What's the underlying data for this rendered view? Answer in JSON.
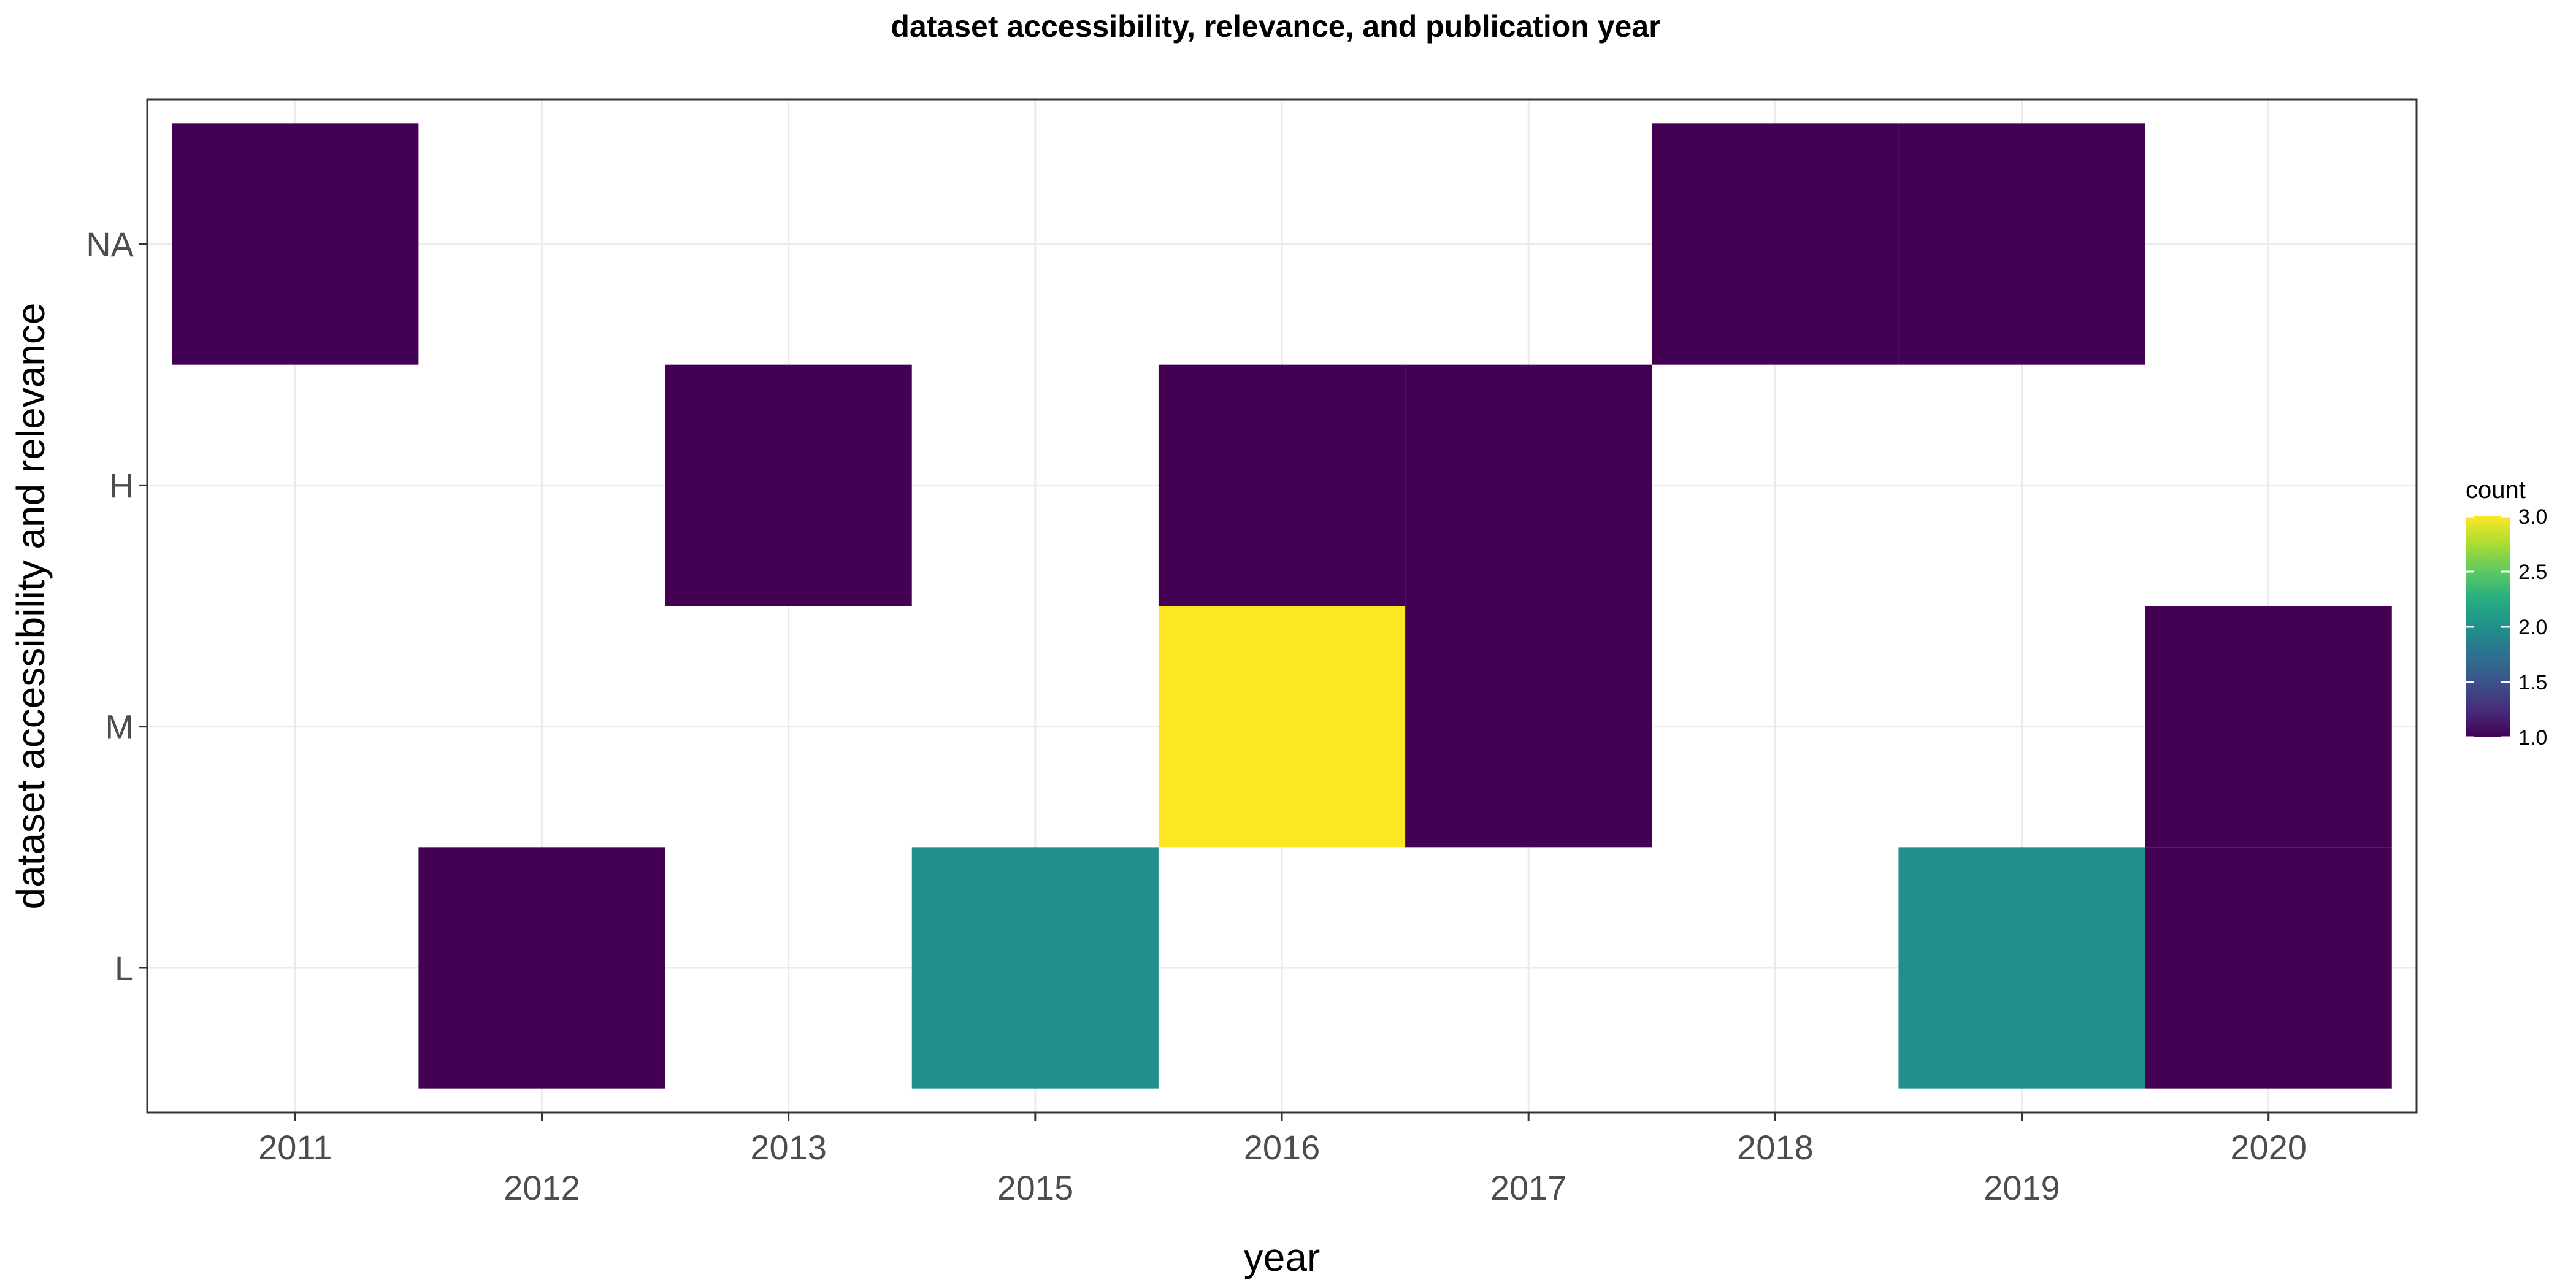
{
  "chart_data": {
    "type": "heatmap",
    "title": "dataset accessibility, relevance, and publication year",
    "xlabel": "year",
    "ylabel": "dataset accessibility and relevance",
    "x_categories": [
      "2011",
      "2012",
      "2013",
      "2015",
      "2016",
      "2017",
      "2018",
      "2019",
      "2020"
    ],
    "y_categories": [
      "L",
      "M",
      "H",
      "NA"
    ],
    "cells": [
      {
        "x": "2011",
        "y": "NA",
        "count": 1
      },
      {
        "x": "2018",
        "y": "NA",
        "count": 1
      },
      {
        "x": "2019",
        "y": "NA",
        "count": 1
      },
      {
        "x": "2013",
        "y": "H",
        "count": 1
      },
      {
        "x": "2016",
        "y": "H",
        "count": 1
      },
      {
        "x": "2017",
        "y": "H",
        "count": 1
      },
      {
        "x": "2016",
        "y": "M",
        "count": 3
      },
      {
        "x": "2017",
        "y": "M",
        "count": 1
      },
      {
        "x": "2020",
        "y": "M",
        "count": 1
      },
      {
        "x": "2012",
        "y": "L",
        "count": 1
      },
      {
        "x": "2015",
        "y": "L",
        "count": 2
      },
      {
        "x": "2019",
        "y": "L",
        "count": 2
      },
      {
        "x": "2020",
        "y": "L",
        "count": 1
      }
    ],
    "legend": {
      "title": "count",
      "ticks": [
        "1.0",
        "1.5",
        "2.0",
        "2.5",
        "3.0"
      ],
      "range": [
        1,
        3
      ],
      "placement": "right"
    },
    "colors": {
      "low": "#440154",
      "mid": "#21908c",
      "high": "#fde725"
    },
    "grid": true
  }
}
